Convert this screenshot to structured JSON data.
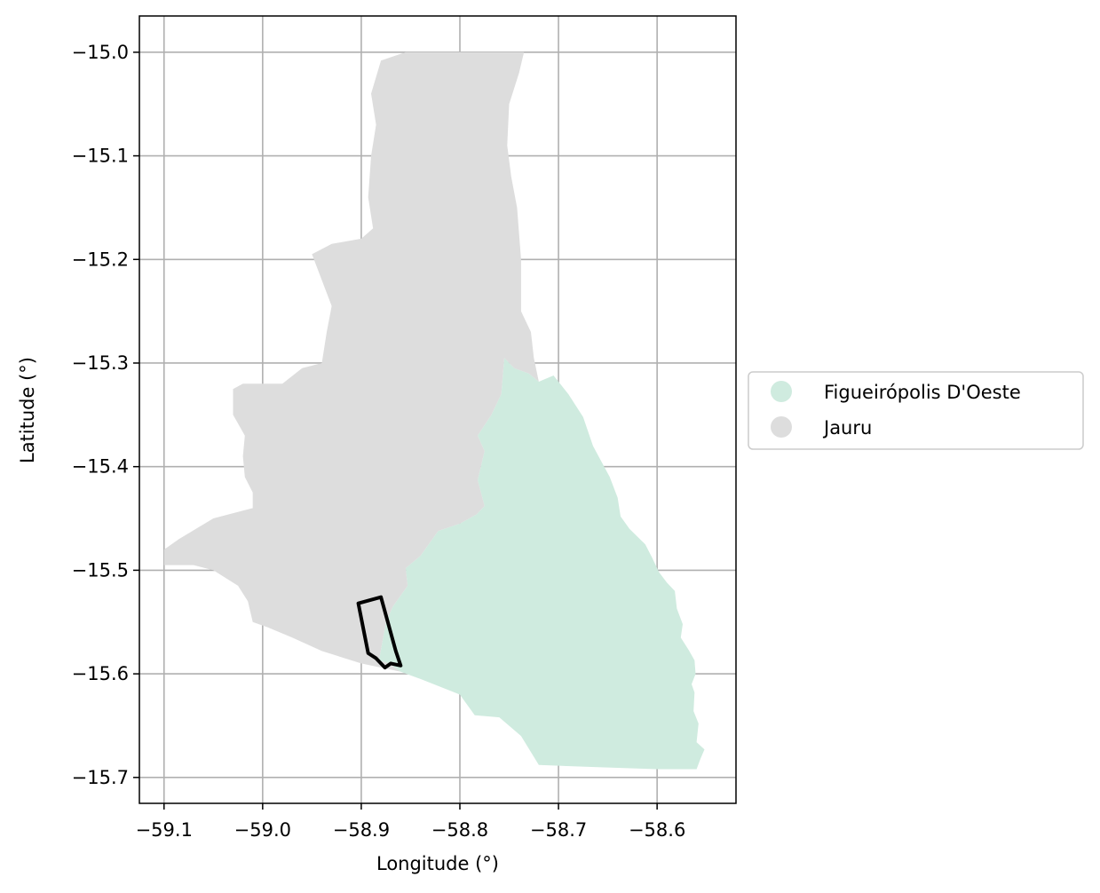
{
  "chart_data": {
    "type": "map",
    "xlabel": "Longitude (°)",
    "ylabel": "Latitude (°)",
    "xlim": [
      -59.125,
      -58.52
    ],
    "ylim": [
      -15.725,
      -14.965
    ],
    "grid": true,
    "x_ticks": [
      -59.1,
      -59.0,
      -58.9,
      -58.8,
      -58.7,
      -58.6
    ],
    "x_tick_labels": [
      "−59.1",
      "−59.0",
      "−58.9",
      "−58.8",
      "−58.7",
      "−58.6"
    ],
    "y_ticks": [
      -15.0,
      -15.1,
      -15.2,
      -15.3,
      -15.4,
      -15.5,
      -15.6,
      -15.7
    ],
    "y_tick_labels": [
      "−15.0",
      "−15.1",
      "−15.2",
      "−15.3",
      "−15.4",
      "−15.5",
      "−15.6",
      "−15.7"
    ],
    "legend_position": "right",
    "regions": [
      {
        "name": "Figueirópolis D'Oeste",
        "color": "#cfebdf",
        "outline": [
          [
            -58.755,
            -15.295
          ],
          [
            -58.745,
            -15.305
          ],
          [
            -58.73,
            -15.31
          ],
          [
            -58.72,
            -15.318
          ],
          [
            -58.705,
            -15.312
          ],
          [
            -58.69,
            -15.33
          ],
          [
            -58.675,
            -15.352
          ],
          [
            -58.665,
            -15.38
          ],
          [
            -58.648,
            -15.41
          ],
          [
            -58.64,
            -15.43
          ],
          [
            -58.637,
            -15.448
          ],
          [
            -58.628,
            -15.46
          ],
          [
            -58.612,
            -15.475
          ],
          [
            -58.605,
            -15.488
          ],
          [
            -58.598,
            -15.502
          ],
          [
            -58.59,
            -15.512
          ],
          [
            -58.582,
            -15.52
          ],
          [
            -58.58,
            -15.537
          ],
          [
            -58.574,
            -15.552
          ],
          [
            -58.576,
            -15.565
          ],
          [
            -58.568,
            -15.577
          ],
          [
            -58.562,
            -15.587
          ],
          [
            -58.561,
            -15.6
          ],
          [
            -58.565,
            -15.61
          ],
          [
            -58.562,
            -15.618
          ],
          [
            -58.563,
            -15.636
          ],
          [
            -58.558,
            -15.648
          ],
          [
            -58.56,
            -15.666
          ],
          [
            -58.552,
            -15.673
          ],
          [
            -58.556,
            -15.682
          ],
          [
            -58.56,
            -15.692
          ],
          [
            -58.6,
            -15.692
          ],
          [
            -58.66,
            -15.69
          ],
          [
            -58.72,
            -15.688
          ],
          [
            -58.738,
            -15.66
          ],
          [
            -58.76,
            -15.642
          ],
          [
            -58.785,
            -15.64
          ],
          [
            -58.8,
            -15.62
          ],
          [
            -58.84,
            -15.605
          ],
          [
            -58.86,
            -15.598
          ],
          [
            -58.872,
            -15.59
          ],
          [
            -58.882,
            -15.587
          ],
          [
            -58.875,
            -15.55
          ],
          [
            -58.868,
            -15.535
          ],
          [
            -58.853,
            -15.515
          ],
          [
            -58.855,
            -15.498
          ],
          [
            -58.84,
            -15.486
          ],
          [
            -58.822,
            -15.462
          ],
          [
            -58.8,
            -15.455
          ],
          [
            -58.783,
            -15.446
          ],
          [
            -58.775,
            -15.438
          ],
          [
            -58.782,
            -15.413
          ],
          [
            -58.775,
            -15.385
          ],
          [
            -58.782,
            -15.37
          ],
          [
            -58.768,
            -15.35
          ],
          [
            -58.758,
            -15.33
          ]
        ]
      },
      {
        "name": "Jauru",
        "color": "#dddddd",
        "outline": [
          [
            -58.735,
            -15.0
          ],
          [
            -58.8,
            -15.0
          ],
          [
            -58.855,
            -15.0
          ],
          [
            -58.88,
            -15.008
          ],
          [
            -58.89,
            -15.04
          ],
          [
            -58.885,
            -15.07
          ],
          [
            -58.89,
            -15.1
          ],
          [
            -58.893,
            -15.14
          ],
          [
            -58.888,
            -15.17
          ],
          [
            -58.9,
            -15.18
          ],
          [
            -58.93,
            -15.185
          ],
          [
            -58.95,
            -15.195
          ],
          [
            -58.94,
            -15.22
          ],
          [
            -58.93,
            -15.245
          ],
          [
            -58.935,
            -15.27
          ],
          [
            -58.94,
            -15.3
          ],
          [
            -58.96,
            -15.305
          ],
          [
            -58.98,
            -15.32
          ],
          [
            -59.02,
            -15.32
          ],
          [
            -59.03,
            -15.325
          ],
          [
            -59.03,
            -15.35
          ],
          [
            -59.018,
            -15.37
          ],
          [
            -59.02,
            -15.39
          ],
          [
            -59.018,
            -15.41
          ],
          [
            -59.01,
            -15.425
          ],
          [
            -59.01,
            -15.44
          ],
          [
            -59.05,
            -15.45
          ],
          [
            -59.085,
            -15.47
          ],
          [
            -59.1,
            -15.48
          ],
          [
            -59.1,
            -15.495
          ],
          [
            -59.07,
            -15.495
          ],
          [
            -59.05,
            -15.5
          ],
          [
            -59.025,
            -15.515
          ],
          [
            -59.015,
            -15.53
          ],
          [
            -59.01,
            -15.55
          ],
          [
            -58.995,
            -15.555
          ],
          [
            -58.97,
            -15.565
          ],
          [
            -58.94,
            -15.578
          ],
          [
            -58.9,
            -15.59
          ],
          [
            -58.87,
            -15.596
          ],
          [
            -58.84,
            -15.602
          ],
          [
            -58.86,
            -15.598
          ],
          [
            -58.872,
            -15.59
          ],
          [
            -58.882,
            -15.587
          ],
          [
            -58.875,
            -15.55
          ],
          [
            -58.868,
            -15.535
          ],
          [
            -58.853,
            -15.515
          ],
          [
            -58.855,
            -15.498
          ],
          [
            -58.84,
            -15.486
          ],
          [
            -58.822,
            -15.462
          ],
          [
            -58.8,
            -15.455
          ],
          [
            -58.783,
            -15.446
          ],
          [
            -58.775,
            -15.438
          ],
          [
            -58.782,
            -15.413
          ],
          [
            -58.775,
            -15.385
          ],
          [
            -58.782,
            -15.37
          ],
          [
            -58.768,
            -15.35
          ],
          [
            -58.758,
            -15.33
          ],
          [
            -58.755,
            -15.295
          ],
          [
            -58.745,
            -15.305
          ],
          [
            -58.73,
            -15.31
          ],
          [
            -58.72,
            -15.318
          ],
          [
            -58.725,
            -15.295
          ],
          [
            -58.728,
            -15.27
          ],
          [
            -58.738,
            -15.25
          ],
          [
            -58.738,
            -15.2
          ],
          [
            -58.742,
            -15.15
          ],
          [
            -58.748,
            -15.12
          ],
          [
            -58.752,
            -15.09
          ],
          [
            -58.75,
            -15.05
          ],
          [
            -58.74,
            -15.02
          ]
        ]
      }
    ],
    "highlight_outline": {
      "color": "#000000",
      "points": [
        [
          -58.903,
          -15.532
        ],
        [
          -58.88,
          -15.526
        ],
        [
          -58.865,
          -15.578
        ],
        [
          -58.86,
          -15.592
        ],
        [
          -58.87,
          -15.59
        ],
        [
          -58.876,
          -15.594
        ],
        [
          -58.885,
          -15.585
        ],
        [
          -58.893,
          -15.58
        ],
        [
          -58.903,
          -15.532
        ]
      ]
    }
  },
  "legend": {
    "items": [
      {
        "label": "Figueirópolis D'Oeste",
        "color": "#cfebdf"
      },
      {
        "label": "Jauru",
        "color": "#dddddd"
      }
    ]
  }
}
